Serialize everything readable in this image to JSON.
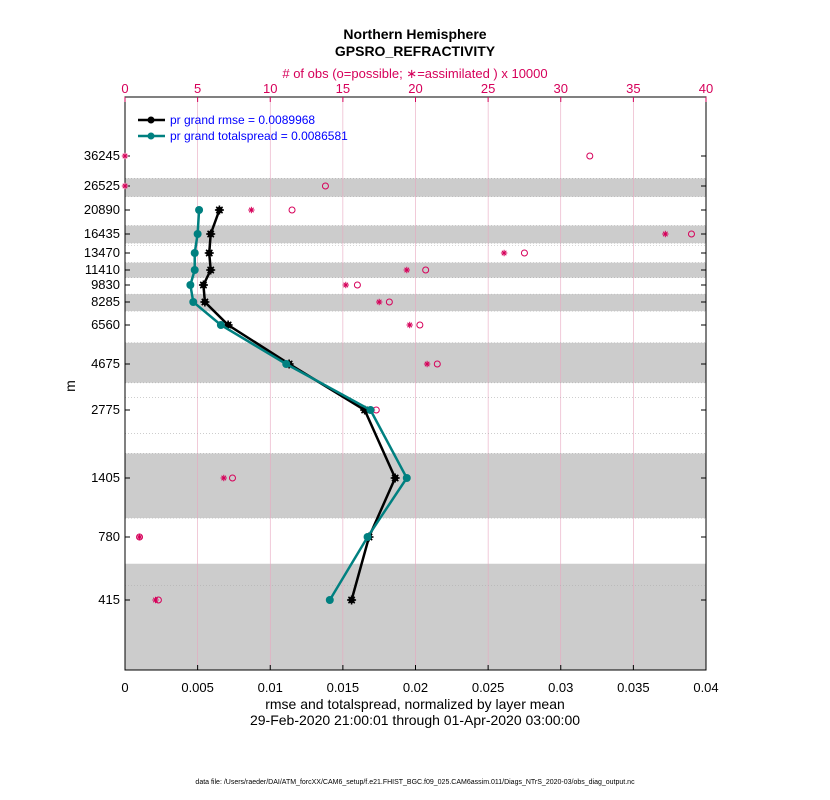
{
  "chart_data": {
    "type": "line",
    "title": "Northern Hemisphere",
    "subtitle": "GPSRO_REFRACTIVITY",
    "top_axis_label": "# of obs (o=possible; ∗=assimilated ) x 10000",
    "top_axis_ticks": [
      "0",
      "5",
      "10",
      "15",
      "20",
      "25",
      "30",
      "35",
      "40"
    ],
    "top_xlim": [
      0,
      40
    ],
    "xlabel": "rmse and totalspread, normalized by layer mean",
    "date_range": "29-Feb-2020 21:00:01 through 01-Apr-2020 03:00:00",
    "ylabel": "m",
    "xlim": [
      0,
      0.04
    ],
    "x_ticks": [
      "0",
      "0.005",
      "0.01",
      "0.015",
      "0.02",
      "0.025",
      "0.03",
      "0.035",
      "0.04"
    ],
    "levels": [
      415,
      780,
      1405,
      2775,
      4675,
      6560,
      8285,
      9830,
      11410,
      13470,
      16435,
      20890,
      26525,
      36245
    ],
    "level_labels": [
      "415",
      "780",
      "1405",
      "2775",
      "4675",
      "6560",
      "8285",
      "9830",
      "11410",
      "13470",
      "16435",
      "20890",
      "26525",
      "36245"
    ],
    "layer_bands": [
      [
        0,
        625
      ],
      [
        980,
        1900
      ],
      [
        3900,
        5700
      ],
      [
        7600,
        9000
      ],
      [
        10600,
        12300
      ],
      [
        15000,
        18000
      ],
      [
        24000,
        29000
      ]
    ],
    "series": [
      {
        "name": "pr grand rmse",
        "legend": "pr grand rmse = 0.0089968",
        "color": "#000000",
        "marker": "star",
        "values": [
          0.0156,
          0.0168,
          0.0186,
          0.0165,
          0.0113,
          0.0071,
          0.0055,
          0.0054,
          0.0059,
          0.0058,
          0.0059,
          0.0065
        ]
      },
      {
        "name": "pr grand totalspread",
        "legend": "pr grand totalspread = 0.0086581",
        "color": "#008080",
        "marker": "circle",
        "values": [
          0.0141,
          0.0167,
          0.0194,
          0.0169,
          0.0111,
          0.0066,
          0.0047,
          0.0045,
          0.0048,
          0.0048,
          0.005,
          0.0051
        ]
      }
    ],
    "obs_possible": [
      2.3,
      1.0,
      7.4,
      17.3,
      21.5,
      20.3,
      18.2,
      16.0,
      20.7,
      27.5,
      39.0,
      11.5,
      13.8,
      32.0
    ],
    "obs_assimilated": [
      2.1,
      1.0,
      6.8,
      17.0,
      20.8,
      19.6,
      17.5,
      15.2,
      19.4,
      26.1,
      37.2,
      8.7,
      0.0,
      0.0
    ]
  },
  "footer": "data file: /Users/raeder/DAI/ATM_forcXX/CAM6_setup/f.e21.FHIST_BGC.f09_025.CAM6assim.011/Diags_NTrS_2020-03/obs_diag_output.nc",
  "colors": {
    "accent": "#d6005a",
    "rmse": "#000000",
    "spread": "#008080",
    "band": "#cccccc",
    "legend_text": "#0000ff"
  }
}
